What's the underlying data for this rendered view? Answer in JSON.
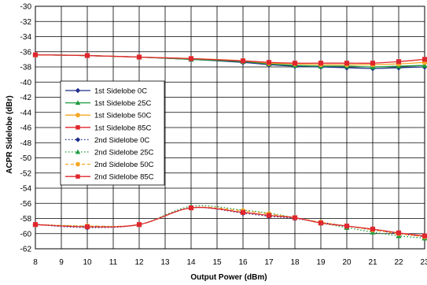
{
  "chart_data": {
    "type": "line",
    "title": "",
    "xlabel": "Output Power (dBm)",
    "ylabel": "ACPR Sidelobe (dBr)",
    "xlim": [
      8,
      23
    ],
    "ylim": [
      -62,
      -30
    ],
    "xticks": [
      8,
      9,
      10,
      11,
      12,
      13,
      14,
      15,
      16,
      17,
      18,
      19,
      20,
      21,
      22,
      23
    ],
    "yticks": [
      -30,
      -32,
      -34,
      -36,
      -38,
      -40,
      -42,
      -44,
      -46,
      -48,
      -50,
      -52,
      -54,
      -56,
      -58,
      -60,
      -62
    ],
    "grid": true,
    "legend_position": "center-left",
    "x": [
      8,
      10,
      12,
      14,
      16,
      17,
      18,
      19,
      20,
      21,
      22,
      23
    ],
    "series": [
      {
        "name": "1st Sidelobe 0C",
        "color": "#1f2d8a",
        "marker": "diamond",
        "dash": "solid",
        "values": [
          -36.4,
          -36.5,
          -36.7,
          -37.0,
          -37.4,
          -37.7,
          -37.9,
          -38.0,
          -38.1,
          -38.2,
          -38.1,
          -38.0
        ]
      },
      {
        "name": "1st Sidelobe 25C",
        "color": "#1a9a3c",
        "marker": "triangle",
        "dash": "solid",
        "values": [
          -36.4,
          -36.5,
          -36.7,
          -37.0,
          -37.3,
          -37.6,
          -37.8,
          -37.9,
          -37.9,
          -38.0,
          -37.9,
          -37.8
        ]
      },
      {
        "name": "1st Sidelobe 50C",
        "color": "#f5a623",
        "marker": "circle",
        "dash": "solid",
        "values": [
          -36.4,
          -36.5,
          -36.7,
          -36.9,
          -37.2,
          -37.5,
          -37.6,
          -37.7,
          -37.7,
          -37.7,
          -37.6,
          -37.4
        ]
      },
      {
        "name": "1st Sidelobe 85C",
        "color": "#e0262e",
        "marker": "square",
        "dash": "solid",
        "values": [
          -36.4,
          -36.5,
          -36.7,
          -36.9,
          -37.2,
          -37.4,
          -37.5,
          -37.5,
          -37.5,
          -37.5,
          -37.3,
          -37.0
        ]
      },
      {
        "name": "2nd Sidelobe 0C",
        "color": "#1f2d8a",
        "marker": "diamond",
        "dash": "dotted",
        "values": [
          -58.8,
          -59.2,
          -58.8,
          -56.6,
          -57.3,
          -57.7,
          -58.0,
          -58.5,
          -59.0,
          -59.5,
          -60.0,
          -60.4
        ]
      },
      {
        "name": "2nd Sidelobe 25C",
        "color": "#1a9a3c",
        "marker": "triangle",
        "dash": "dotted",
        "values": [
          -58.8,
          -59.0,
          -58.8,
          -56.4,
          -56.9,
          -57.3,
          -57.9,
          -58.6,
          -59.2,
          -59.8,
          -60.3,
          -60.6
        ]
      },
      {
        "name": "2nd Sidelobe 50C",
        "color": "#f5a623",
        "marker": "circle",
        "dash": "dashed",
        "values": [
          -58.8,
          -59.0,
          -58.8,
          -56.6,
          -57.0,
          -57.4,
          -57.9,
          -58.5,
          -59.0,
          -59.5,
          -60.0,
          -60.4
        ]
      },
      {
        "name": "2nd Sidelobe 85C",
        "color": "#e0262e",
        "marker": "square",
        "dash": "solid",
        "values": [
          -58.8,
          -59.1,
          -58.8,
          -56.6,
          -57.2,
          -57.6,
          -57.9,
          -58.6,
          -59.0,
          -59.4,
          -59.9,
          -60.3
        ]
      }
    ]
  }
}
